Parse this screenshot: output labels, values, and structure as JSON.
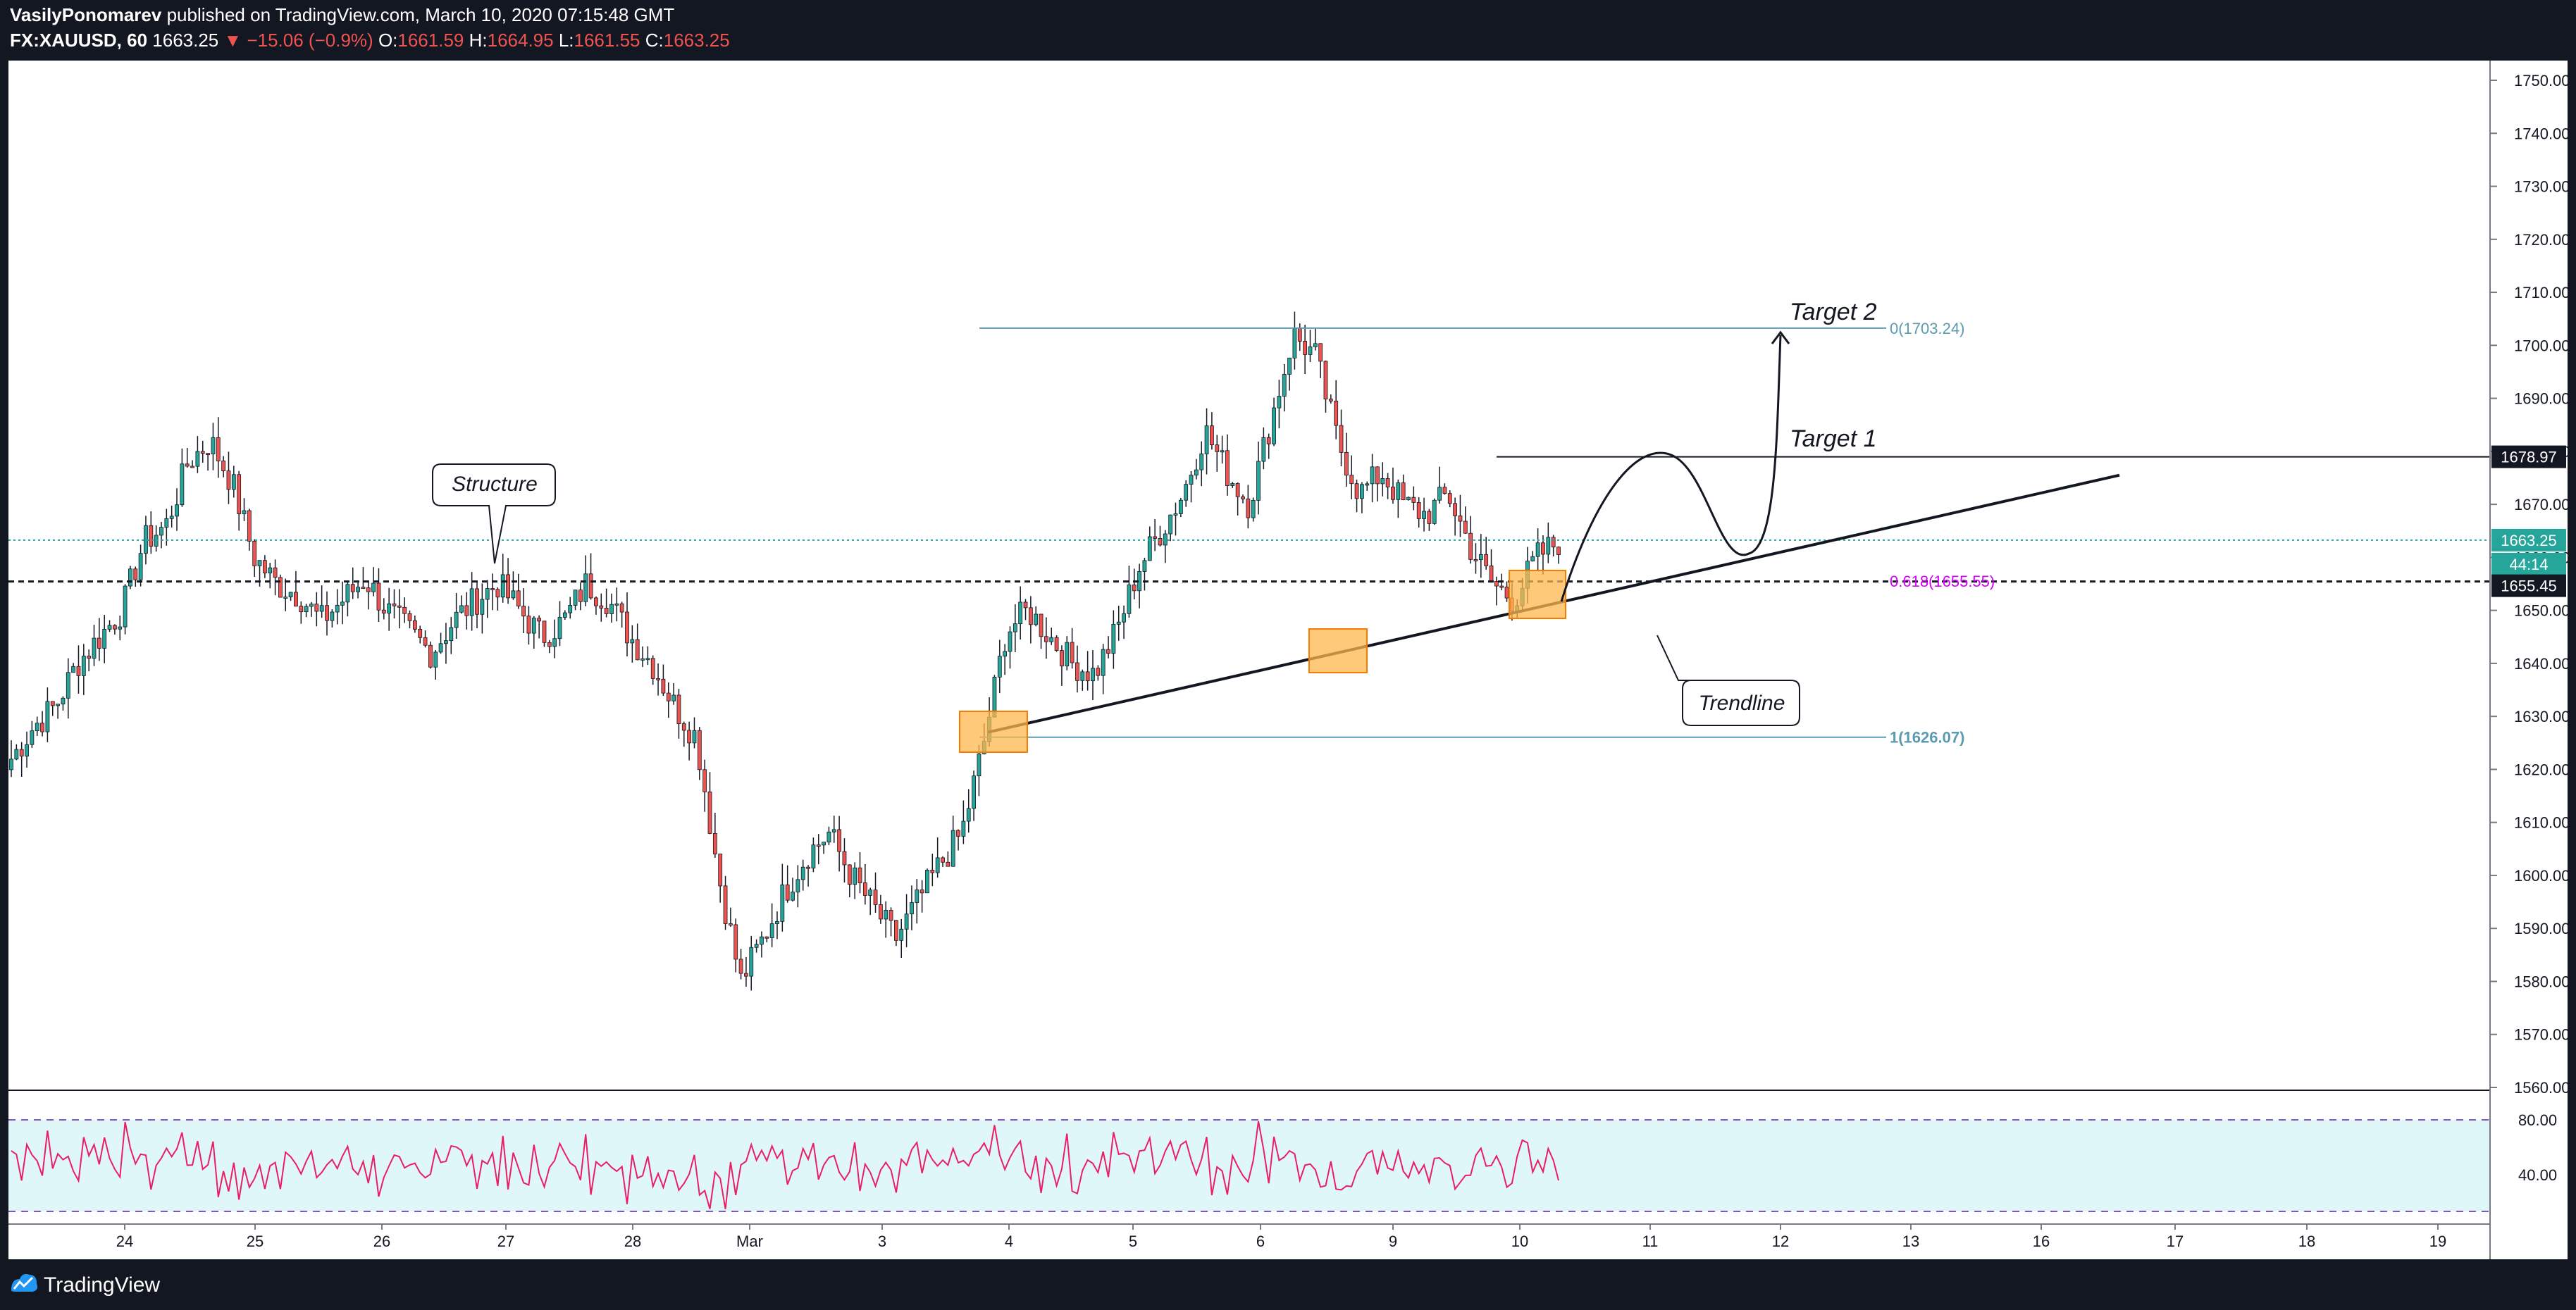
{
  "header": {
    "author": "VasilyPonomarev",
    "published": "published on TradingView.com, March 10, 2020 07:15:48 GMT",
    "symbol": "FX:XAUUSD, 60",
    "last": "1663.25",
    "change": "▼ −15.06 (−0.9%)",
    "o_label": "O:",
    "o_value": "1661.59",
    "h_label": "H:",
    "h_value": "1664.95",
    "l_label": "L:",
    "l_value": "1661.55",
    "c_label": "C:",
    "c_value": "1663.25"
  },
  "footer": {
    "brand": "TradingView"
  },
  "colors": {
    "up": "#26a69a",
    "down": "#ef5350",
    "rsi": "#e91e63",
    "rsi_band": "#e0f7fa",
    "zone": "#ffb74d",
    "fib": "#5b9bb0",
    "fib_mid": "#d500f9",
    "price_tag": "#26a69a"
  },
  "chart_data": {
    "type": "candlestick",
    "ylim": [
      1560,
      1750
    ],
    "price_ticks": [
      "1750.00",
      "1740.00",
      "1730.00",
      "1720.00",
      "1710.00",
      "1700.00",
      "1690.00",
      "1680.00",
      "1670.00",
      "1660.00",
      "1650.00",
      "1640.00",
      "1630.00",
      "1620.00",
      "1610.00",
      "1600.00",
      "1590.00",
      "1580.00",
      "1570.00",
      "1560.00"
    ],
    "date_ticks": [
      "24",
      "25",
      "26",
      "27",
      "28",
      "Mar",
      "3",
      "4",
      "5",
      "6",
      "9",
      "10",
      "11",
      "12",
      "13",
      "16",
      "17",
      "18",
      "19"
    ],
    "ohlc_close_path": [
      1622,
      1628,
      1632,
      1640,
      1645,
      1650,
      1663,
      1666,
      1678,
      1682,
      1674,
      1660,
      1655,
      1653,
      1648,
      1652,
      1656,
      1650,
      1646,
      1642,
      1648,
      1652,
      1655,
      1650,
      1645,
      1648,
      1655,
      1652,
      1645,
      1640,
      1632,
      1626,
      1600,
      1580,
      1588,
      1597,
      1604,
      1608,
      1600,
      1594,
      1588,
      1595,
      1602,
      1608,
      1625,
      1646,
      1650,
      1645,
      1640,
      1638,
      1646,
      1658,
      1665,
      1672,
      1684,
      1676,
      1670,
      1686,
      1702,
      1698,
      1682,
      1672,
      1676,
      1670,
      1668,
      1672,
      1662,
      1655,
      1652,
      1660,
      1663
    ],
    "levels": {
      "close_last": "1663.25",
      "line_1678": "1678.97",
      "line_1655": "1655.45",
      "countdown": "44:14"
    },
    "fib": {
      "f0": "0(1703.24)",
      "f618": "0.618(1655.55)",
      "f1": "1(1626.07)"
    },
    "annotations": {
      "structure": "Structure",
      "trendline": "Trendline",
      "target1": "Target 1",
      "target2": "Target 2"
    },
    "rsi": {
      "upper": "80.00",
      "lower": "40.00"
    }
  }
}
